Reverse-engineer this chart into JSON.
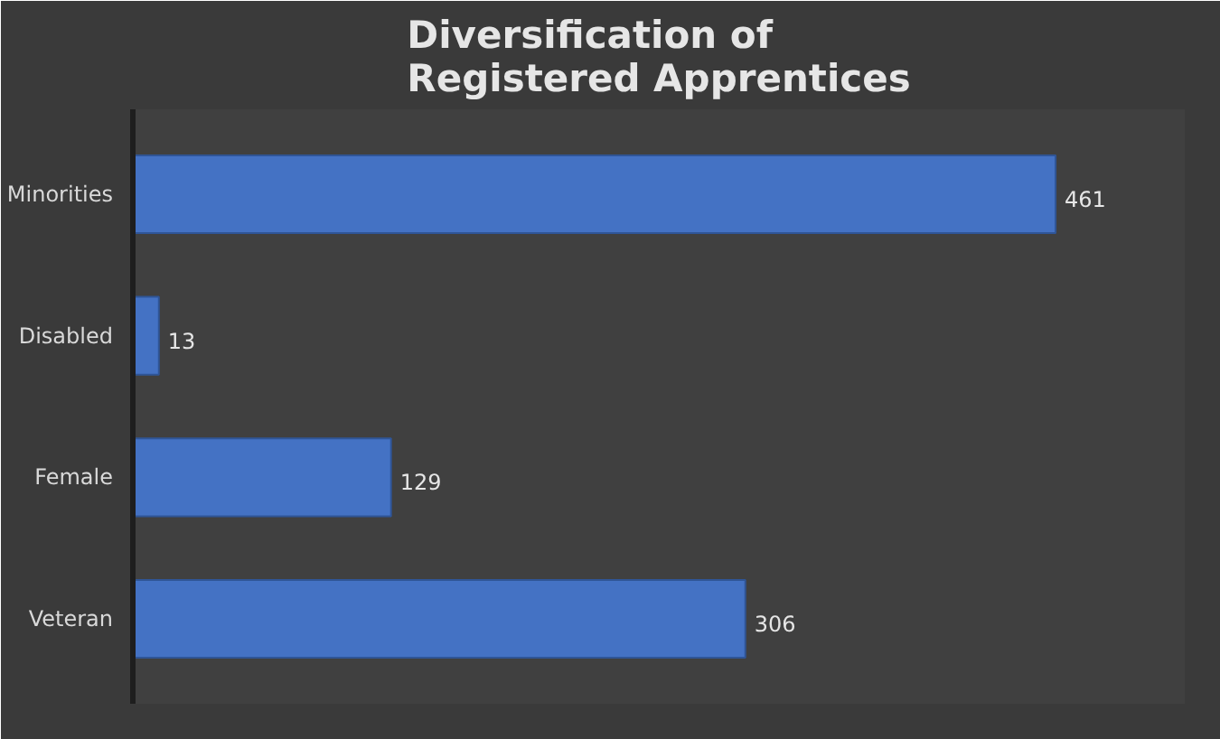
{
  "chart_data": {
    "type": "bar",
    "orientation": "horizontal",
    "title": "Diversification of\nRegistered Apprentices",
    "categories": [
      "Minorities",
      "Disabled",
      "Female",
      "Veteran"
    ],
    "values": [
      461,
      13,
      129,
      306
    ],
    "color": "#4472c4",
    "data_labels": true,
    "grid": false
  }
}
